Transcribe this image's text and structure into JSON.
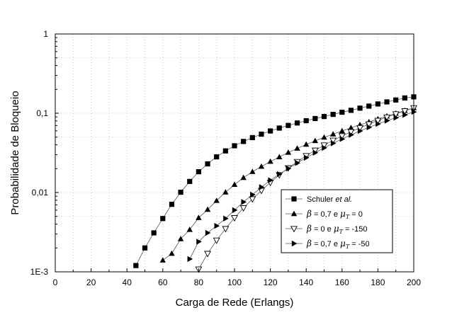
{
  "chart_data": {
    "type": "line",
    "title": "",
    "xlabel": "Carga de Rede (Erlangs)",
    "ylabel": "Probabilidade de Bloqueio",
    "xlim": [
      0,
      200
    ],
    "ylim": [
      0.001,
      1
    ],
    "yscale": "log",
    "grid": true,
    "legend_position": "bottom-right",
    "x_ticks": [
      0,
      20,
      40,
      60,
      80,
      100,
      120,
      140,
      160,
      180,
      200
    ],
    "x_tick_labels": [
      "0",
      "20",
      "40",
      "60",
      "80",
      "100",
      "120",
      "140",
      "160",
      "180",
      "200"
    ],
    "y_ticks": [
      0.001,
      0.01,
      0.1,
      1
    ],
    "y_tick_labels": [
      "1E-3",
      "0,01",
      "0,1",
      "1"
    ],
    "series": [
      {
        "name": "Schuler et al.",
        "marker": "square",
        "legend": {
          "prefix": "Schuler ",
          "italic": "et al."
        },
        "x": [
          45,
          50,
          55,
          60,
          65,
          70,
          75,
          80,
          85,
          90,
          95,
          100,
          105,
          110,
          115,
          120,
          125,
          130,
          135,
          140,
          145,
          150,
          155,
          160,
          165,
          170,
          175,
          180,
          185,
          190,
          195,
          200
        ],
        "y": [
          0.0012,
          0.002,
          0.0031,
          0.0047,
          0.0071,
          0.0101,
          0.0138,
          0.0183,
          0.023,
          0.0282,
          0.0335,
          0.0389,
          0.0441,
          0.0493,
          0.0545,
          0.0598,
          0.065,
          0.0702,
          0.0754,
          0.0806,
          0.0858,
          0.091,
          0.0968,
          0.103,
          0.109,
          0.116,
          0.123,
          0.131,
          0.139,
          0.147,
          0.156,
          0.161
        ]
      },
      {
        "name": "β = 0,7 e μT = 0",
        "marker": "triangle-up",
        "legend": {
          "beta": "0,7",
          "mu": "0"
        },
        "x": [
          60,
          65,
          70,
          75,
          80,
          85,
          90,
          95,
          100,
          105,
          110,
          115,
          120,
          125,
          130,
          135,
          140,
          145,
          150,
          155,
          160,
          165,
          170,
          175,
          180,
          185,
          190,
          195,
          200
        ],
        "y": [
          0.0014,
          0.0017,
          0.0026,
          0.0034,
          0.0048,
          0.0061,
          0.0079,
          0.0101,
          0.0126,
          0.0154,
          0.0183,
          0.0213,
          0.0246,
          0.0281,
          0.032,
          0.036,
          0.0404,
          0.0449,
          0.0496,
          0.0545,
          0.0598,
          0.0654,
          0.0714,
          0.0777,
          0.0845,
          0.0918,
          0.0996,
          0.108,
          0.117
        ]
      },
      {
        "name": "β = 0 e μT = -150",
        "marker": "triangle-down",
        "legend": {
          "beta": "0",
          "mu": "-150"
        },
        "x": [
          80,
          85,
          90,
          95,
          100,
          105,
          110,
          115,
          120,
          125,
          130,
          135,
          140,
          145,
          150,
          155,
          160,
          165,
          170,
          175,
          180,
          185,
          190,
          195,
          200
        ],
        "y": [
          0.00108,
          0.0017,
          0.0025,
          0.0035,
          0.0048,
          0.0064,
          0.0083,
          0.0106,
          0.0134,
          0.0167,
          0.0204,
          0.0245,
          0.0291,
          0.0341,
          0.0396,
          0.0455,
          0.0518,
          0.0585,
          0.0656,
          0.0731,
          0.081,
          0.0893,
          0.0979,
          0.107,
          0.117
        ]
      },
      {
        "name": "β = 0,7 e μT = -50",
        "marker": "triangle-right",
        "legend": {
          "beta": "0,7",
          "mu": "-50"
        },
        "x": [
          75,
          80,
          85,
          90,
          95,
          100,
          105,
          110,
          115,
          120,
          125,
          130,
          135,
          140,
          145,
          150,
          155,
          160,
          165,
          170,
          175,
          180,
          185,
          190,
          195,
          200
        ],
        "y": [
          0.00145,
          0.0024,
          0.0031,
          0.0038,
          0.0047,
          0.006,
          0.0076,
          0.0094,
          0.0117,
          0.0143,
          0.0171,
          0.0201,
          0.0236,
          0.0275,
          0.0318,
          0.0366,
          0.0418,
          0.0474,
          0.0534,
          0.0598,
          0.0664,
          0.0733,
          0.0805,
          0.0879,
          0.0955,
          0.104
        ]
      }
    ]
  }
}
